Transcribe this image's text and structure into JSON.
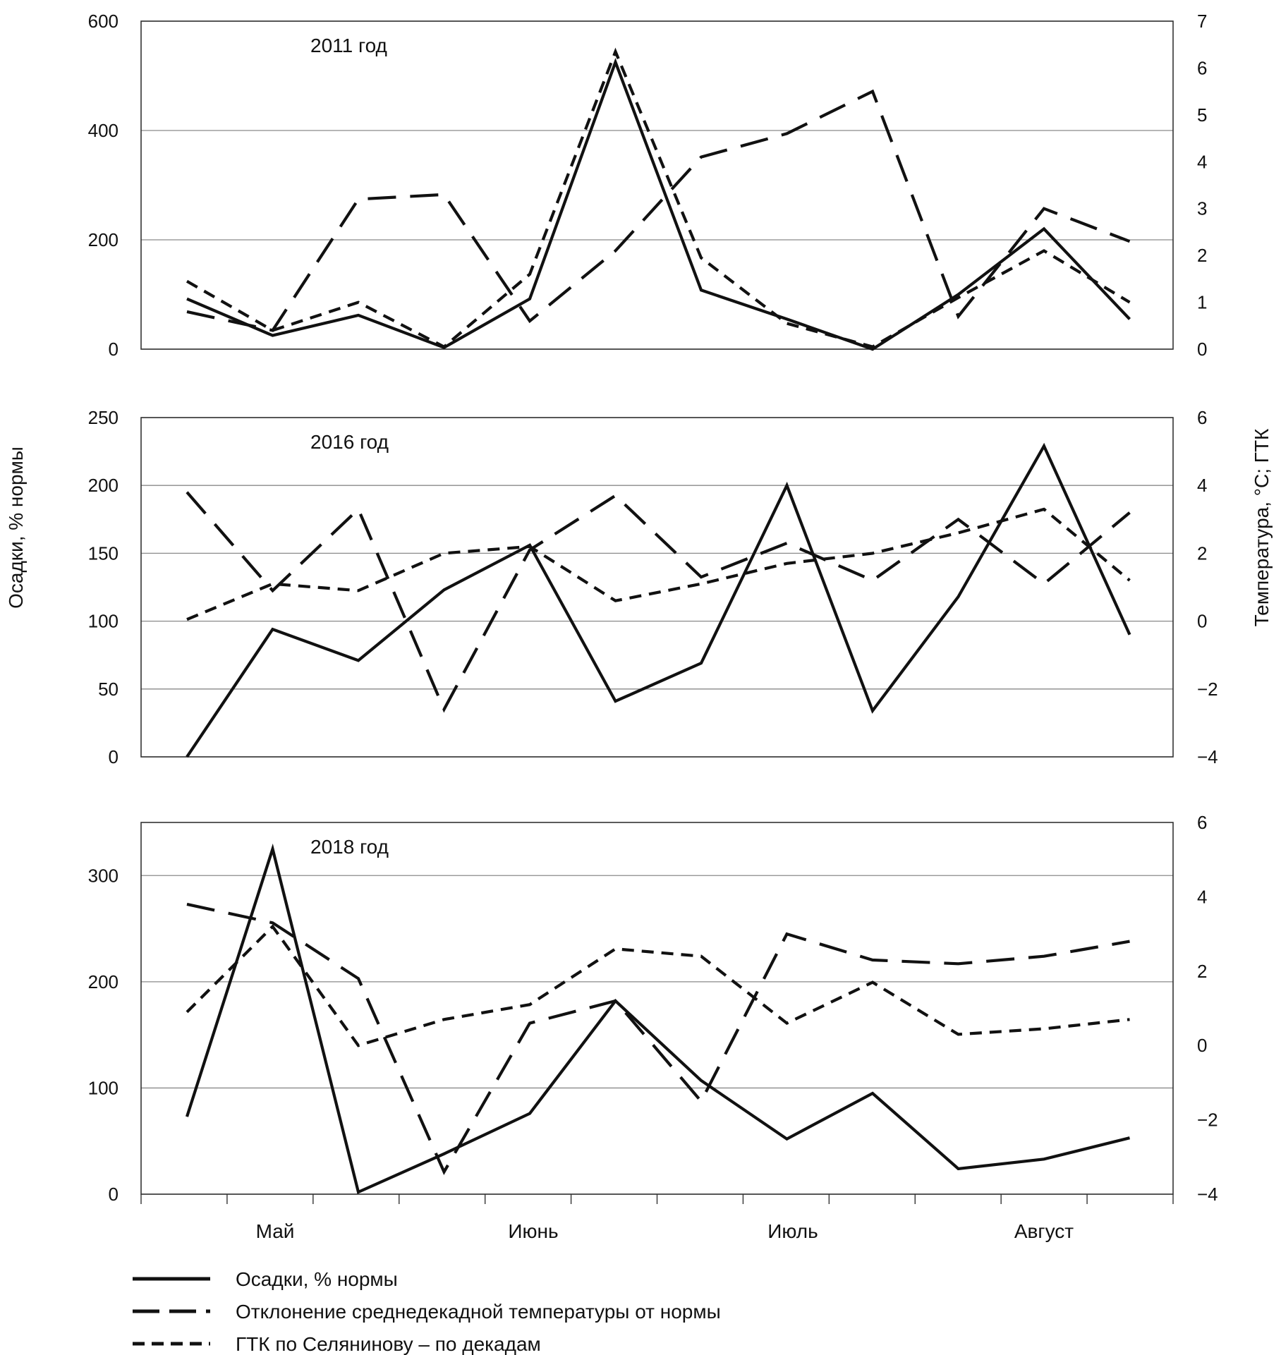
{
  "chart_data": [
    {
      "type": "line",
      "title": "2011 год",
      "ylabel": "Осадки, % нормы",
      "y2label": "Температура, °C; ГТК",
      "ylim": [
        0,
        600
      ],
      "yticks": [
        "0",
        "200",
        "400",
        "600"
      ],
      "y2lim": [
        0,
        7
      ],
      "y2ticks": [
        "0",
        "1",
        "2",
        "3",
        "4",
        "5",
        "6",
        "7"
      ],
      "x": [
        1,
        2,
        3,
        4,
        5,
        6,
        7,
        8,
        9,
        10,
        11,
        12
      ],
      "series": [
        {
          "name": "Осадки, % нормы",
          "axis": "left",
          "style": "solid",
          "values": [
            92,
            25,
            62,
            3,
            92,
            525,
            108,
            55,
            0,
            100,
            220,
            55
          ]
        },
        {
          "name": "Отклонение среднедекадной температуры от нормы",
          "axis": "right",
          "style": "long-dash",
          "values": [
            0.8,
            0.4,
            3.2,
            3.3,
            0.6,
            2.1,
            4.1,
            4.6,
            5.5,
            0.7,
            3.0,
            2.3
          ]
        },
        {
          "name": "ГТК по Селянинову – по декадам",
          "axis": "right",
          "style": "short-dash",
          "values": [
            1.45,
            0.4,
            1.0,
            0.05,
            1.6,
            6.35,
            1.95,
            0.55,
            0.05,
            1.1,
            2.1,
            1.0
          ]
        }
      ]
    },
    {
      "type": "line",
      "title": "2016 год",
      "ylabel": "Осадки, % нормы",
      "y2label": "Температура, °C; ГТК",
      "ylim": [
        0,
        250
      ],
      "yticks": [
        "0",
        "50",
        "100",
        "150",
        "200",
        "250"
      ],
      "y2lim": [
        -4,
        6
      ],
      "y2ticks": [
        "−4",
        "−2",
        "0",
        "2",
        "4",
        "6"
      ],
      "x": [
        1,
        2,
        3,
        4,
        5,
        6,
        7,
        8,
        9,
        10,
        11,
        12
      ],
      "series": [
        {
          "name": "Осадки, % нормы",
          "axis": "left",
          "style": "solid",
          "values": [
            0,
            94,
            71,
            123,
            156,
            41,
            69,
            200,
            34,
            118,
            229,
            90
          ]
        },
        {
          "name": "Отклонение среднедекадной температуры от нормы",
          "axis": "right",
          "style": "long-dash",
          "values": [
            3.8,
            0.9,
            3.3,
            -2.6,
            2.1,
            3.7,
            1.3,
            2.3,
            1.2,
            3.0,
            1.1,
            3.2
          ]
        },
        {
          "name": "ГТК по Селянинову – по декадам",
          "axis": "right",
          "style": "short-dash",
          "values": [
            0.05,
            1.1,
            0.9,
            2.0,
            2.2,
            0.6,
            1.1,
            1.7,
            2.0,
            2.6,
            3.3,
            1.2
          ]
        }
      ]
    },
    {
      "type": "line",
      "title": "2018 год",
      "ylabel": "Осадки, % нормы",
      "y2label": "Температура, °C; ГТК",
      "ylim": [
        0,
        350
      ],
      "yticks": [
        "0",
        "100",
        "200",
        "300"
      ],
      "y2lim": [
        -4,
        6
      ],
      "y2ticks": [
        "−4",
        "−2",
        "0",
        "2",
        "4",
        "6"
      ],
      "x": [
        1,
        2,
        3,
        4,
        5,
        6,
        7,
        8,
        9,
        10,
        11,
        12
      ],
      "series": [
        {
          "name": "Осадки, % нормы",
          "axis": "left",
          "style": "solid",
          "values": [
            73,
            325,
            2,
            38,
            76,
            182,
            107,
            52,
            95,
            24,
            33,
            53
          ]
        },
        {
          "name": "Отклонение среднедекадной температуры от нормы",
          "axis": "right",
          "style": "long-dash",
          "values": [
            3.8,
            3.3,
            1.8,
            -3.4,
            0.6,
            1.2,
            -1.5,
            3.0,
            2.3,
            2.2,
            2.4,
            2.8
          ]
        },
        {
          "name": "ГТК по Селянинову – по декадам",
          "axis": "right",
          "style": "short-dash",
          "values": [
            0.9,
            3.2,
            0.0,
            0.7,
            1.1,
            2.6,
            2.4,
            0.6,
            1.7,
            0.3,
            0.45,
            0.7
          ]
        }
      ]
    }
  ],
  "x_axis": {
    "months": [
      "Май",
      "Июнь",
      "Июль",
      "Август"
    ]
  },
  "axis_titles": {
    "left": "Осадки, % нормы",
    "right": "Температура, °C; ГТК"
  },
  "legend": [
    {
      "label": "Осадки, % нормы",
      "style": "solid"
    },
    {
      "label": "Отклонение среднедекадной температуры от нормы",
      "style": "long-dash"
    },
    {
      "label": "ГТК по Селянинову – по декадам",
      "style": "short-dash"
    }
  ]
}
